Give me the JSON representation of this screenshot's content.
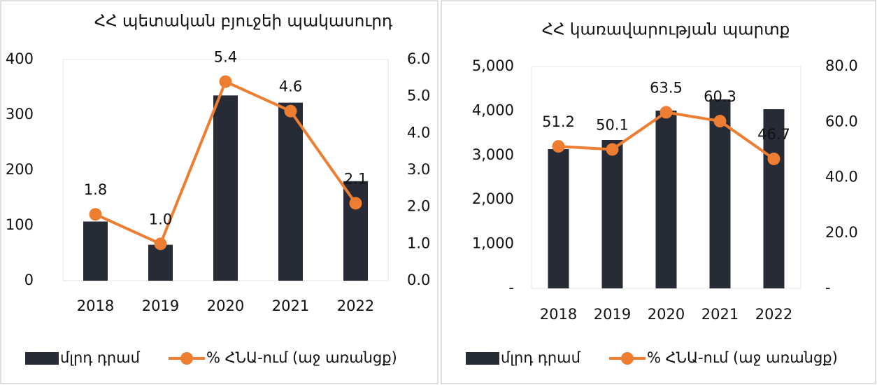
{
  "chart_data": [
    {
      "type": "bar-line",
      "title": "ՀՀ պետական բյուջեի պակասուրդ",
      "categories": [
        "2018",
        "2019",
        "2020",
        "2021",
        "2022"
      ],
      "series": [
        {
          "name": "մլրդ դրամ",
          "color": "#262b35",
          "values": [
            107,
            65,
            335,
            322,
            180
          ]
        },
        {
          "name": "% ՀՆԱ-ում (աջ առանցք)",
          "color": "#ed7d31",
          "axis": "y2",
          "values": [
            1.8,
            1.0,
            5.4,
            4.6,
            2.1
          ],
          "value_labels": [
            "1.8",
            "1.0",
            "5.4",
            "4.6",
            "2.1"
          ]
        }
      ],
      "ylim": [
        0,
        400
      ],
      "yticks": [
        0,
        100,
        200,
        300,
        400
      ],
      "y2lim": [
        0,
        6
      ],
      "y2ticks": [
        {
          "value": 0,
          "label": "0.0"
        },
        {
          "value": 1,
          "label": "1.0"
        },
        {
          "value": 2,
          "label": "2.0"
        },
        {
          "value": 3,
          "label": "3.0"
        },
        {
          "value": 4,
          "label": "4.0"
        },
        {
          "value": 5,
          "label": "5.0"
        },
        {
          "value": 6,
          "label": "6.0"
        }
      ],
      "legend": "bottom"
    },
    {
      "type": "bar-line",
      "title": "ՀՀ կառավարության պարտք",
      "categories": [
        "2018",
        "2019",
        "2020",
        "2021",
        "2022"
      ],
      "series": [
        {
          "name": "մլրդ դրամ",
          "color": "#262b35",
          "values": [
            3139,
            3344,
            4006,
            4259,
            4038
          ]
        },
        {
          "name": "% ՀՆԱ-ում (աջ առանցք)",
          "color": "#ed7d31",
          "axis": "y2",
          "values": [
            51.2,
            50.1,
            63.5,
            60.3,
            46.7
          ]
        }
      ],
      "ylim": [
        0,
        5000
      ],
      "yticks": [
        {
          "value": 0,
          "label": "-"
        },
        {
          "value": 1000,
          "label": "1,000"
        },
        {
          "value": 2000,
          "label": "2,000"
        },
        {
          "value": 3000,
          "label": "3,000"
        },
        {
          "value": 4000,
          "label": "4,000"
        },
        {
          "value": 5000,
          "label": "5,000"
        }
      ],
      "y2lim": [
        0,
        80
      ],
      "y2ticks": [
        {
          "value": 0,
          "label": "-"
        },
        {
          "value": 20,
          "label": "20.0"
        },
        {
          "value": 40,
          "label": "40.0"
        },
        {
          "value": 60,
          "label": "60.0"
        },
        {
          "value": 80,
          "label": "80.0"
        }
      ],
      "legend": "bottom"
    }
  ]
}
